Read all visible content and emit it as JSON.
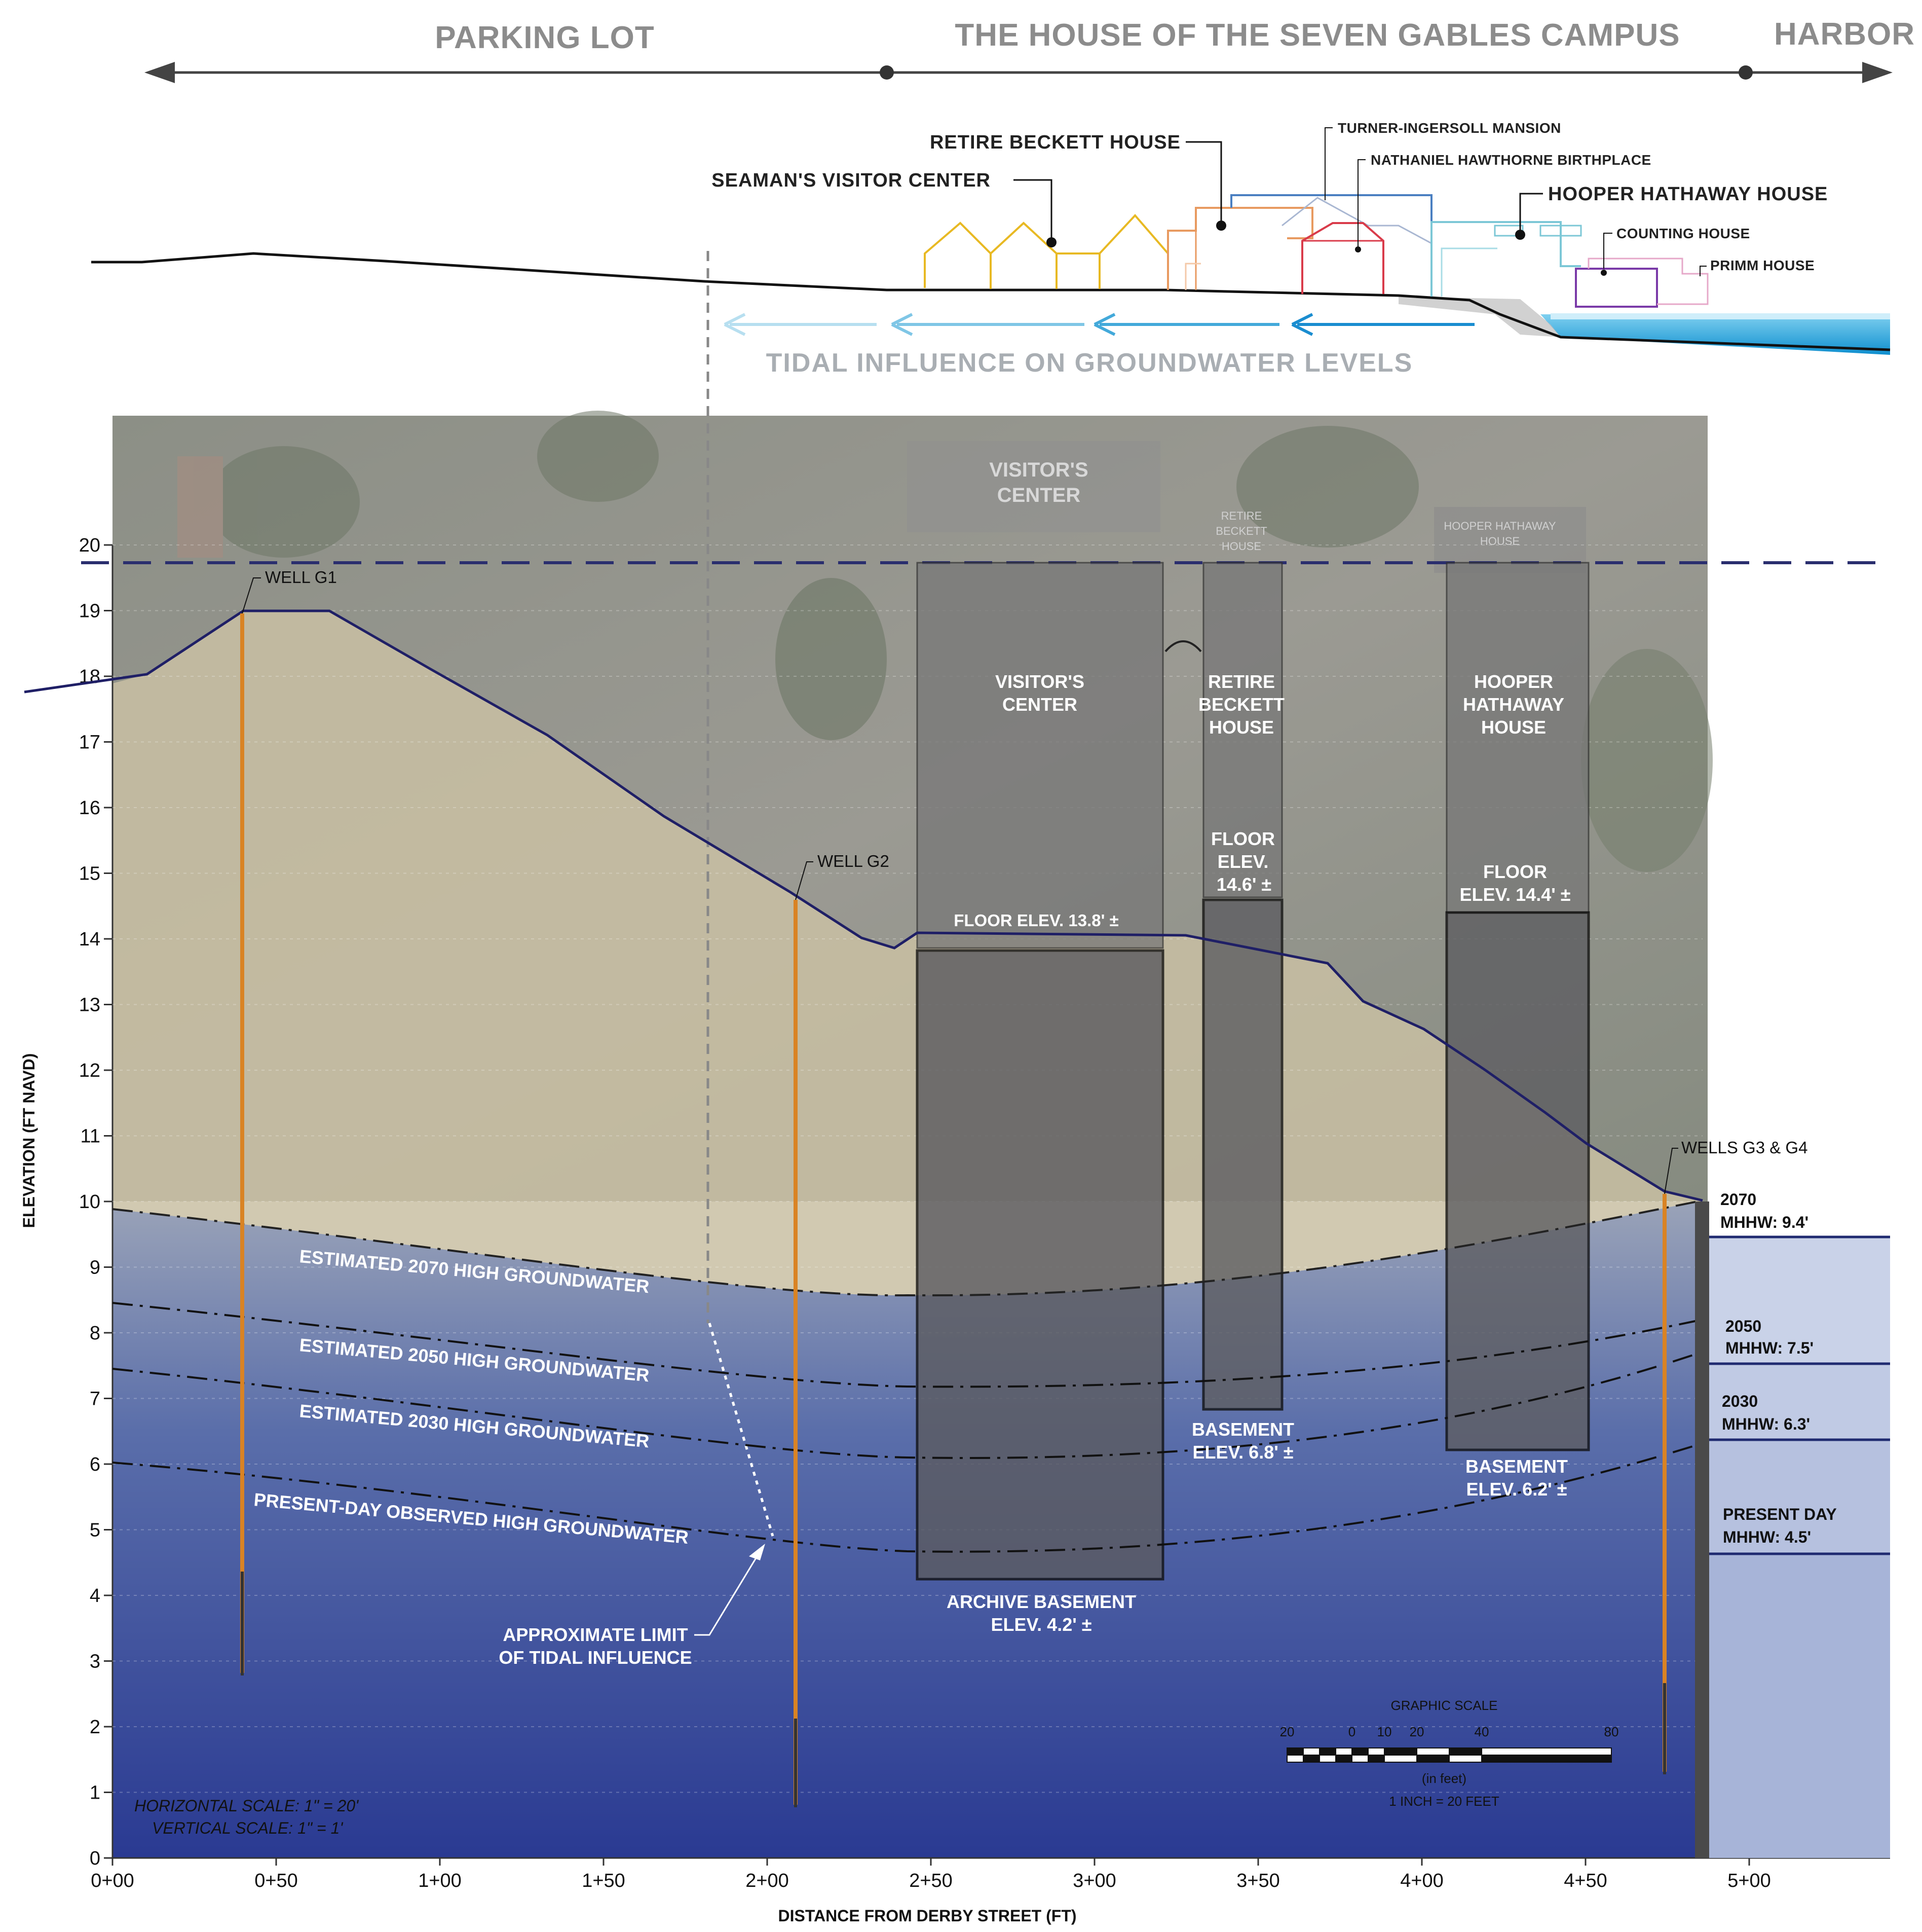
{
  "zones": {
    "parking_lot": "PARKING LOT",
    "campus": "THE HOUSE OF THE SEVEN GABLES CAMPUS",
    "harbor": "HARBOR"
  },
  "elevation_view": {
    "retire_beckett_house": "RETIRE BECKETT HOUSE",
    "turner_ingersoll_mansion": "TURNER-INGERSOLL MANSION",
    "nathaniel_hawthorne_birthplace": "NATHANIEL HAWTHORNE BIRTHPLACE",
    "seamans_visitor_center": "SEAMAN'S VISITOR CENTER",
    "hooper_hathaway_house": "HOOPER HATHAWAY HOUSE",
    "counting_house": "COUNTING HOUSE",
    "primm_house": "PRIMM HOUSE",
    "tidal_influence": "TIDAL INFLUENCE ON GROUNDWATER LEVELS"
  },
  "aerial_labels": {
    "visitors_center_1": "VISITOR'S",
    "visitors_center_2": "CENTER",
    "retire_beckett_1": "RETIRE",
    "retire_beckett_2": "BECKETT",
    "retire_beckett_3": "HOUSE",
    "hooper_hathaway_1": "HOOPER HATHAWAY",
    "hooper_hathaway_2": "HOUSE"
  },
  "axes": {
    "y_title": "ELEVATION (FT NAVD)",
    "x_title": "DISTANCE FROM DERBY STREET (FT)",
    "y_ticks": [
      "0",
      "1",
      "2",
      "3",
      "4",
      "5",
      "6",
      "7",
      "8",
      "9",
      "10",
      "11",
      "12",
      "13",
      "14",
      "15",
      "16",
      "17",
      "18",
      "19",
      "20"
    ],
    "x_ticks": [
      "0+00",
      "0+50",
      "1+00",
      "1+50",
      "2+00",
      "2+50",
      "3+00",
      "3+50",
      "4+00",
      "4+50",
      "5+00"
    ]
  },
  "buildings": {
    "visitors_center": {
      "line1": "VISITOR'S",
      "line2": "CENTER",
      "floor": "FLOOR ELEV. 13.8' ±",
      "basement_1": "ARCHIVE BASEMENT",
      "basement_2": "ELEV. 4.2' ±"
    },
    "retire_beckett": {
      "line1": "RETIRE",
      "line2": "BECKETT",
      "line3": "HOUSE",
      "floor_1": "FLOOR",
      "floor_2": "ELEV.",
      "floor_3": "14.6' ±",
      "basement_1": "BASEMENT",
      "basement_2": "ELEV. 6.8' ±"
    },
    "hooper_hathaway": {
      "line1": "HOOPER",
      "line2": "HATHAWAY",
      "line3": "HOUSE",
      "floor_1": "FLOOR",
      "floor_2": "ELEV. 14.4' ±",
      "basement_1": "BASEMENT",
      "basement_2": "ELEV. 6.2' ±"
    }
  },
  "groundwater": {
    "gw_2070": "ESTIMATED 2070 HIGH GROUNDWATER",
    "gw_2050": "ESTIMATED 2050 HIGH GROUNDWATER",
    "gw_2030": "ESTIMATED 2030 HIGH GROUNDWATER",
    "gw_present": "PRESENT-DAY OBSERVED HIGH GROUNDWATER",
    "tidal_limit_1": "APPROXIMATE LIMIT",
    "tidal_limit_2": "OF TIDAL INFLUENCE"
  },
  "wells": {
    "g1": "WELL G1",
    "g2": "WELL G2",
    "g3g4": "WELLS G3 & G4"
  },
  "mhhw": {
    "y2070_1": "2070",
    "y2070_2": "MHHW: 9.4'",
    "y2050_1": "2050",
    "y2050_2": "MHHW: 7.5'",
    "y2030_1": "2030",
    "y2030_2": "MHHW: 6.3'",
    "present_1": "PRESENT DAY",
    "present_2": "MHHW: 4.5'"
  },
  "scale": {
    "horizontal": "HORIZONTAL SCALE: 1\" = 20'",
    "vertical": "VERTICAL SCALE: 1\" = 1'",
    "graphic_title": "GRAPHIC SCALE",
    "t20": "20",
    "t0": "0",
    "t10": "10",
    "t20b": "20",
    "t40": "40",
    "t80": "80",
    "unit": "(in feet)",
    "ratio": "1 INCH = 20 FEET"
  },
  "colors": {
    "ground_tan": "#c9bfa3",
    "gw_deep_blue": "#2b3f91",
    "profile_navy": "#23235f",
    "basement_gray": "#666666",
    "well_orange": "#d98324",
    "harbor_blue": "#1aa0d8"
  }
}
